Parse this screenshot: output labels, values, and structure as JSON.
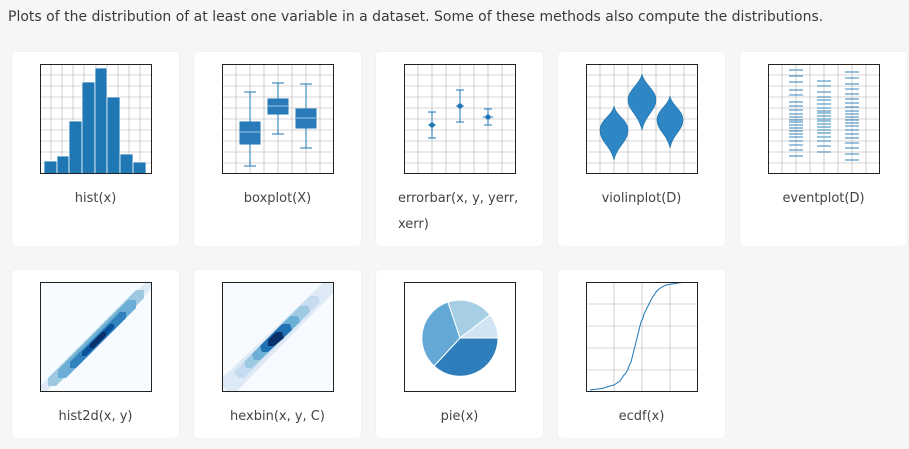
{
  "intro": "Plots of the distribution of at least one variable in a dataset. Some of these methods also compute the distributions.",
  "cards": [
    {
      "label": "hist(x)"
    },
    {
      "label": "boxplot(X)"
    },
    {
      "label": "errorbar(x, y, yerr, xerr)"
    },
    {
      "label": "violinplot(D)"
    },
    {
      "label": "eventplot(D)"
    },
    {
      "label": "hist2d(x, y)"
    },
    {
      "label": "hexbin(x, y, C)"
    },
    {
      "label": "pie(x)"
    },
    {
      "label": "ecdf(x)"
    }
  ],
  "colors": {
    "blue": "#1f77b4",
    "grid": "#b0b0b0",
    "card": "#ffffff",
    "page": "#f6f6f7"
  }
}
